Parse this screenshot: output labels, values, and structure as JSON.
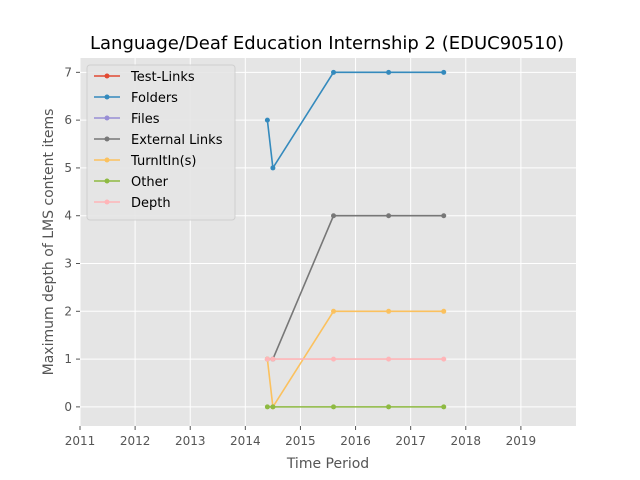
{
  "chart_data": {
    "type": "line",
    "title": "Language/Deaf Education Internship 2 (EDUC90510)",
    "xlabel": "Time Period",
    "ylabel": "Maximum depth of LMS content items",
    "xlim": [
      2011,
      2020
    ],
    "ylim": [
      -0.4,
      7.3
    ],
    "x_ticks": [
      2011,
      2012,
      2013,
      2014,
      2015,
      2016,
      2017,
      2018,
      2019
    ],
    "y_ticks": [
      0,
      1,
      2,
      3,
      4,
      5,
      6,
      7
    ],
    "grid": true,
    "legend_position": "top-left",
    "x": [
      2014.4,
      2014.5,
      2015.6,
      2016.6,
      2017.6
    ],
    "series": [
      {
        "name": "Test-Links",
        "color": "#E24A33",
        "values": [
          null,
          null,
          null,
          null,
          null
        ]
      },
      {
        "name": "Folders",
        "color": "#348ABD",
        "values": [
          6,
          5,
          7,
          7,
          7
        ]
      },
      {
        "name": "Files",
        "color": "#988ED5",
        "values": [
          null,
          null,
          null,
          null,
          null
        ]
      },
      {
        "name": "External Links",
        "color": "#777777",
        "values": [
          1,
          1,
          4,
          4,
          4
        ]
      },
      {
        "name": "TurnItIn(s)",
        "color": "#FBC15E",
        "values": [
          1,
          0,
          2,
          2,
          2
        ]
      },
      {
        "name": "Other",
        "color": "#8EBA42",
        "values": [
          0,
          0,
          0,
          0,
          0
        ]
      },
      {
        "name": "Depth",
        "color": "#FFB5B8",
        "values": [
          1,
          1,
          1,
          1,
          1
        ]
      }
    ]
  }
}
